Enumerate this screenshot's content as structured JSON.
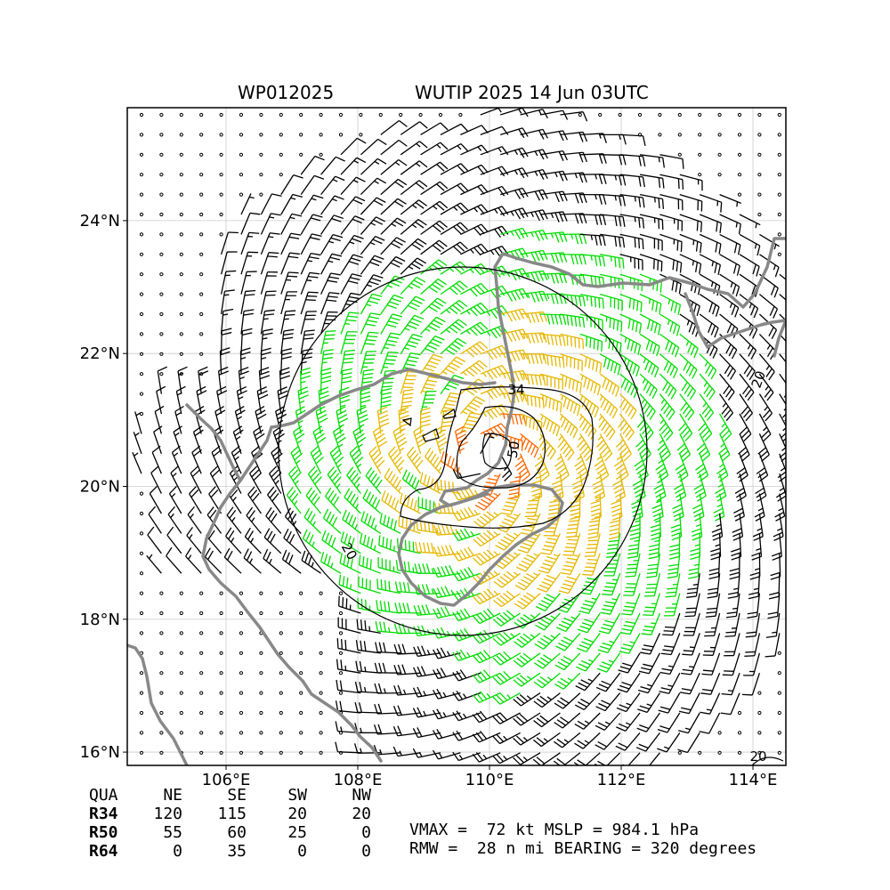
{
  "header": {
    "storm_id": "WP012025",
    "storm_title": "WUTIP 2025 14 Jun 03UTC"
  },
  "map": {
    "lon_labels": [
      "106°E",
      "108°E",
      "110°E",
      "112°E",
      "114°E"
    ],
    "lat_labels": [
      "24°N",
      "22°N",
      "20°N",
      "18°N",
      "16°N"
    ],
    "lon_range": [
      104.5,
      114.5
    ],
    "lat_range": [
      15.8,
      25.7
    ],
    "center": {
      "lon": 109.9,
      "lat": 20.45
    },
    "contour_levels": [
      "34",
      "50",
      "20",
      "20",
      "20"
    ],
    "colors": {
      "coastline": "#888888",
      "barb_calm": "#000000",
      "barb_34kt": "#00dd00",
      "barb_50kt": "#e6b800",
      "barb_64kt": "#ff6600",
      "contour": "#000000",
      "gridline": "#cccccc"
    }
  },
  "radii_table": {
    "header": [
      "QUA",
      "NE",
      "SE",
      "SW",
      "NW"
    ],
    "rows": [
      {
        "label": "R34",
        "values": [
          "120",
          "115",
          "20",
          "20"
        ]
      },
      {
        "label": "R50",
        "values": [
          "55",
          "60",
          "25",
          "0"
        ]
      },
      {
        "label": "R64",
        "values": [
          "0",
          "35",
          "0",
          "0"
        ]
      }
    ]
  },
  "stats": {
    "line1": "VMAX =  72 kt MSLP = 984.1 hPa",
    "line2": "RMW =  28 n mi BEARING = 320 degrees"
  }
}
